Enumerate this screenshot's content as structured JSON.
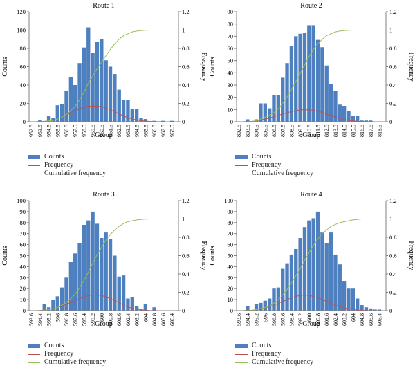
{
  "colors": {
    "bars": "#4e7fbe",
    "frequency": "#c0504d",
    "cumulative": "#9bbb59",
    "axis": "#808080"
  },
  "legend": {
    "counts": "Counts",
    "frequency": "Frequency",
    "cumulative": "Cumulative frequency"
  },
  "chart_data": [
    {
      "type": "bar",
      "title": "Route 1",
      "xlabel": "Group",
      "ylabel": "Counts",
      "y2label": "Frequency",
      "ylim": [
        0,
        120
      ],
      "yticks": [
        0,
        20,
        40,
        60,
        80,
        100,
        120
      ],
      "y2lim": [
        0,
        1.2
      ],
      "y2ticks": [
        0,
        0.2,
        0.4,
        0.6,
        0.8,
        1,
        1.2
      ],
      "xtick_labels": [
        "952.5",
        "953.5",
        "954.5",
        "955.5",
        "956.5",
        "957.5",
        "958.5",
        "959.5",
        "960.5",
        "961.5",
        "962.5",
        "963.5",
        "964.5",
        "965.5",
        "966.5",
        "967.5",
        "968.5"
      ],
      "series": [
        {
          "name": "Counts",
          "values": [
            0,
            0,
            2,
            0,
            6,
            4,
            18,
            19,
            34,
            49,
            40,
            64,
            81,
            103,
            75,
            87,
            90,
            67,
            60,
            52,
            35,
            24,
            24,
            14,
            14,
            4,
            3,
            0,
            1,
            0,
            1,
            0,
            1,
            0
          ]
        },
        {
          "name": "Frequency",
          "values": [
            0,
            0,
            0.003,
            0.005,
            0.01,
            0.015,
            0.03,
            0.05,
            0.07,
            0.1,
            0.12,
            0.14,
            0.16,
            0.17,
            0.17,
            0.17,
            0.165,
            0.15,
            0.13,
            0.11,
            0.085,
            0.065,
            0.045,
            0.03,
            0.02,
            0.012,
            0.007,
            0.004,
            0.002,
            0.001,
            0,
            0,
            0,
            0
          ]
        },
        {
          "name": "Cumulative frequency",
          "values": [
            0,
            0,
            0.002,
            0.003,
            0.01,
            0.015,
            0.03,
            0.05,
            0.08,
            0.12,
            0.17,
            0.24,
            0.32,
            0.42,
            0.5,
            0.58,
            0.65,
            0.72,
            0.79,
            0.85,
            0.9,
            0.94,
            0.96,
            0.98,
            0.99,
            0.995,
            0.998,
            1,
            1,
            1,
            1,
            1,
            1,
            1
          ]
        }
      ]
    },
    {
      "type": "bar",
      "title": "Route 2",
      "xlabel": "Group",
      "ylabel": "Counts",
      "y2label": "Frequency",
      "ylim": [
        0,
        90
      ],
      "yticks": [
        0,
        10,
        20,
        30,
        40,
        50,
        60,
        70,
        80,
        90
      ],
      "y2lim": [
        0,
        1.2
      ],
      "y2ticks": [
        0,
        0.2,
        0.4,
        0.6,
        0.8,
        1,
        1.2
      ],
      "xtick_labels": [
        "802.5",
        "803.5",
        "804.5",
        "805.5",
        "806.5",
        "807.5",
        "808.5",
        "809.5",
        "810.5",
        "811.5",
        "812.5",
        "813.5",
        "814.5",
        "815.5",
        "816.5",
        "817.5",
        "818.5"
      ],
      "series": [
        {
          "name": "Counts",
          "values": [
            0,
            0,
            2,
            0,
            2,
            15,
            15,
            11,
            22,
            22,
            36,
            48,
            62,
            70,
            72,
            73,
            79,
            79,
            67,
            61,
            46,
            31,
            25,
            14,
            13,
            9,
            5,
            5,
            1,
            1,
            1,
            0,
            0,
            0
          ]
        },
        {
          "name": "Frequency",
          "values": [
            0,
            0,
            0.003,
            0.005,
            0.01,
            0.02,
            0.03,
            0.04,
            0.055,
            0.07,
            0.085,
            0.1,
            0.11,
            0.12,
            0.13,
            0.13,
            0.13,
            0.125,
            0.115,
            0.1,
            0.085,
            0.065,
            0.05,
            0.035,
            0.025,
            0.015,
            0.01,
            0.005,
            0.003,
            0.002,
            0.001,
            0,
            0,
            0
          ]
        },
        {
          "name": "Cumulative frequency",
          "values": [
            0,
            0,
            0.002,
            0.004,
            0.01,
            0.03,
            0.05,
            0.07,
            0.1,
            0.14,
            0.2,
            0.27,
            0.35,
            0.44,
            0.53,
            0.62,
            0.71,
            0.79,
            0.85,
            0.9,
            0.94,
            0.96,
            0.98,
            0.99,
            0.995,
            0.998,
            1,
            1,
            1,
            1,
            1,
            1,
            1,
            1
          ]
        }
      ]
    },
    {
      "type": "bar",
      "title": "Route 3",
      "xlabel": "Group",
      "ylabel": "Counts",
      "y2label": "Frequency",
      "ylim": [
        0,
        100
      ],
      "yticks": [
        0,
        10,
        20,
        30,
        40,
        50,
        60,
        70,
        80,
        90,
        100
      ],
      "y2lim": [
        0,
        1.2
      ],
      "y2ticks": [
        0,
        0.2,
        0.4,
        0.6,
        0.8,
        1,
        1.2
      ],
      "xtick_labels": [
        "593.6",
        "594.4",
        "595.2",
        "596",
        "596.8",
        "597.6",
        "598.4",
        "599.2",
        "600",
        "600.8",
        "601.6",
        "602.4",
        "603.2",
        "604",
        "604.8",
        "605.6",
        "606.4"
      ],
      "series": [
        {
          "name": "Counts",
          "values": [
            0,
            0,
            0,
            6,
            3,
            10,
            13,
            21,
            30,
            44,
            52,
            61,
            78,
            82,
            90,
            79,
            66,
            71,
            65,
            50,
            31,
            32,
            11,
            12,
            4,
            1,
            6,
            0,
            3,
            0,
            0,
            0,
            0,
            0
          ]
        },
        {
          "name": "Frequency",
          "values": [
            0,
            0,
            0.002,
            0.005,
            0.01,
            0.02,
            0.035,
            0.05,
            0.07,
            0.09,
            0.11,
            0.13,
            0.15,
            0.165,
            0.17,
            0.17,
            0.165,
            0.15,
            0.13,
            0.11,
            0.085,
            0.06,
            0.04,
            0.025,
            0.015,
            0.01,
            0.005,
            0.002,
            0.001,
            0,
            0,
            0,
            0,
            0
          ]
        },
        {
          "name": "Cumulative frequency",
          "values": [
            0,
            0,
            0,
            0.005,
            0.01,
            0.02,
            0.035,
            0.06,
            0.09,
            0.13,
            0.18,
            0.25,
            0.33,
            0.42,
            0.52,
            0.61,
            0.69,
            0.77,
            0.83,
            0.88,
            0.92,
            0.95,
            0.97,
            0.98,
            0.99,
            0.995,
            0.998,
            1,
            1,
            1,
            1,
            1,
            1,
            1
          ]
        }
      ]
    },
    {
      "type": "bar",
      "title": "Route 4",
      "xlabel": "Group",
      "ylabel": "Counts",
      "y2label": "Frequency",
      "ylim": [
        0,
        100
      ],
      "yticks": [
        0,
        10,
        20,
        30,
        40,
        50,
        60,
        70,
        80,
        90,
        100
      ],
      "y2lim": [
        0,
        1.2
      ],
      "y2ticks": [
        0,
        0.2,
        0.4,
        0.6,
        0.8,
        1,
        1.2
      ],
      "xtick_labels": [
        "593.6",
        "594.4",
        "595.2",
        "596",
        "596.8",
        "597.6",
        "598.4",
        "599.2",
        "600",
        "600.8",
        "601.6",
        "602.4",
        "603.2",
        "604",
        "604.8",
        "605.6",
        "606.4"
      ],
      "series": [
        {
          "name": "Counts",
          "values": [
            0,
            0,
            4,
            0,
            6,
            7,
            9,
            11,
            20,
            21,
            38,
            43,
            51,
            56,
            66,
            76,
            82,
            84,
            90,
            71,
            61,
            71,
            51,
            42,
            27,
            20,
            20,
            11,
            5,
            3,
            2,
            1,
            1,
            0
          ]
        },
        {
          "name": "Frequency",
          "values": [
            0,
            0,
            0.003,
            0.005,
            0.01,
            0.02,
            0.03,
            0.045,
            0.06,
            0.08,
            0.1,
            0.12,
            0.14,
            0.155,
            0.165,
            0.17,
            0.165,
            0.155,
            0.14,
            0.12,
            0.1,
            0.08,
            0.06,
            0.045,
            0.03,
            0.02,
            0.012,
            0.007,
            0.004,
            0.002,
            0.001,
            0,
            0,
            0
          ]
        },
        {
          "name": "Cumulative frequency",
          "values": [
            0,
            0,
            0.002,
            0.004,
            0.01,
            0.02,
            0.035,
            0.05,
            0.08,
            0.12,
            0.17,
            0.23,
            0.3,
            0.38,
            0.46,
            0.55,
            0.63,
            0.71,
            0.78,
            0.84,
            0.88,
            0.92,
            0.94,
            0.96,
            0.97,
            0.98,
            0.99,
            0.995,
            1,
            1,
            1,
            1,
            1,
            1
          ]
        }
      ]
    }
  ]
}
